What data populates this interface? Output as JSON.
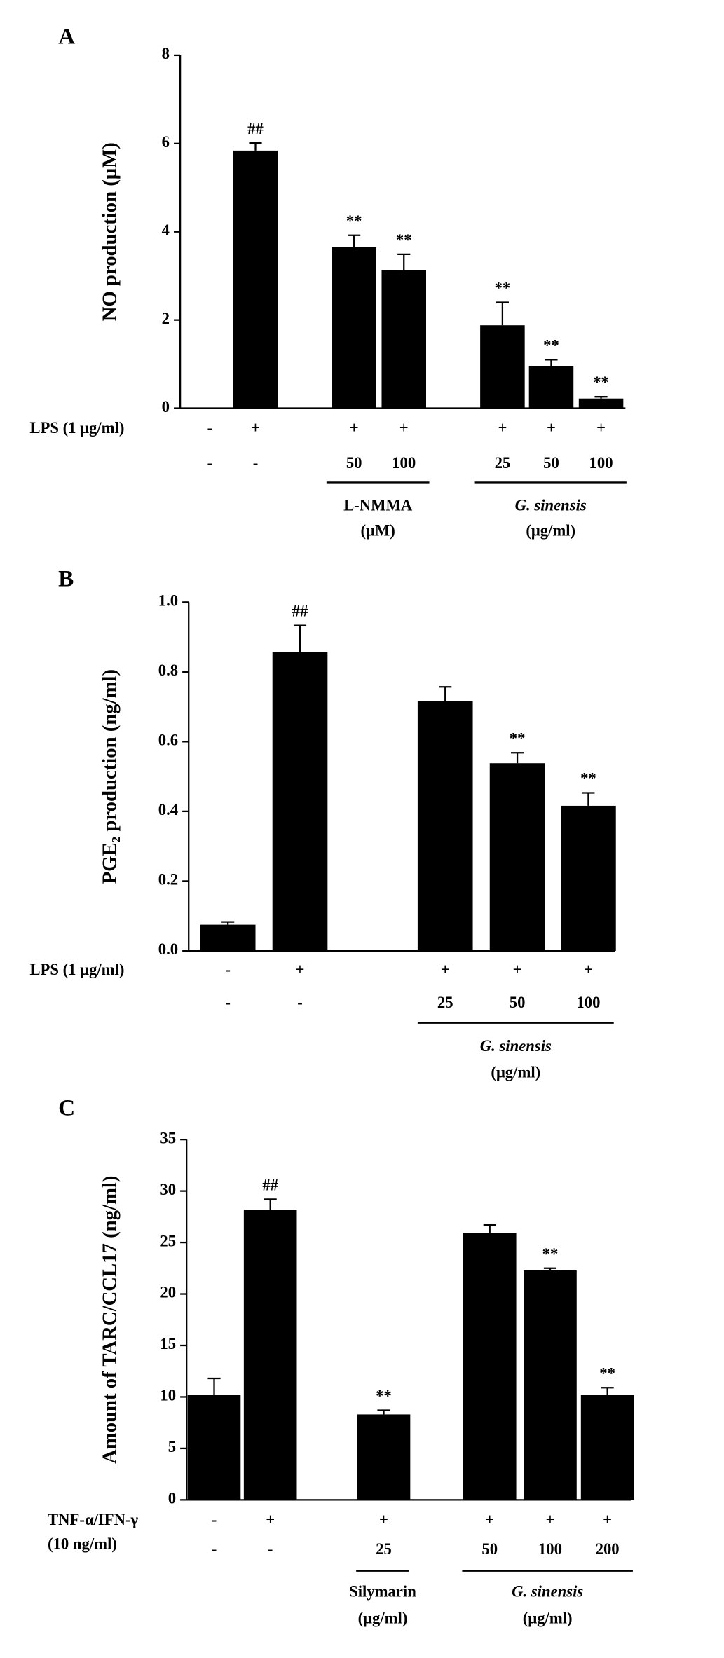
{
  "chart_data": [
    {
      "type": "bar",
      "panel": "A",
      "ylabel": "NO production (μM)",
      "ylim": [
        0,
        8
      ],
      "yticks": [
        0,
        2,
        4,
        6,
        8
      ],
      "color": "#000000",
      "values": [
        0,
        5.84,
        3.65,
        3.13,
        1.88,
        0.96,
        0.22
      ],
      "errors": [
        null,
        0.17,
        0.27,
        0.36,
        0.52,
        0.14,
        0.04
      ],
      "annotations": [
        null,
        "##",
        "**",
        "**",
        "**",
        "**",
        "**"
      ],
      "treatments": [
        {
          "label": "LPS (1 μg/ml)",
          "values": [
            "-",
            "+",
            "+",
            "+",
            "+",
            "+",
            "+"
          ]
        },
        {
          "values": [
            "-",
            "-",
            "50",
            "100",
            "25",
            "50",
            "100"
          ]
        }
      ],
      "groups": [
        {
          "name": "L-NMMA",
          "unit": "(μM)",
          "bars": [
            2,
            3
          ],
          "style": "normal"
        },
        {
          "name": "G. sinensis",
          "unit": "(μg/ml)",
          "bars": [
            4,
            6
          ],
          "style": "italic"
        }
      ]
    },
    {
      "type": "bar",
      "panel": "B",
      "ylabel": "PGE₂ production (ng/ml)",
      "ylim": [
        0,
        1
      ],
      "yticks": [
        {
          "value": 0,
          "label": "0.0"
        },
        0.2,
        0.4,
        0.6,
        0.8,
        {
          "value": 1,
          "label": "1.0"
        }
      ],
      "color": "#000000",
      "values": [
        0.075,
        0.857,
        0.717,
        0.538,
        0.416
      ],
      "errors": [
        0.008,
        0.076,
        0.04,
        0.03,
        0.037
      ],
      "annotations": [
        null,
        "##",
        null,
        "**",
        "**"
      ],
      "treatments": [
        {
          "label": "LPS (1 μg/ml)",
          "values": [
            "-",
            "+",
            "+",
            "+",
            "+"
          ]
        },
        {
          "values": [
            "-",
            "-",
            "25",
            "50",
            "100"
          ]
        }
      ],
      "groups": [
        {
          "name": "G. sinensis",
          "unit": "(μg/ml)",
          "bars": [
            2,
            4
          ],
          "style": "italic"
        }
      ]
    },
    {
      "type": "bar",
      "panel": "C",
      "ylabel": "Amount of TARC/CCL17 (ng/ml)",
      "ylim": [
        0,
        35
      ],
      "yticks": [
        0,
        5,
        10,
        15,
        20,
        25,
        30,
        35
      ],
      "color": "#000000",
      "values": [
        10.2,
        28.2,
        8.3,
        25.9,
        22.3,
        10.2
      ],
      "errors": [
        1.6,
        1.0,
        0.4,
        0.8,
        0.2,
        0.7
      ],
      "annotations": [
        null,
        "##",
        "**",
        null,
        "**",
        "**"
      ],
      "treatments": [
        {
          "label": "TNF-α/IFN-γ",
          "values": [
            "-",
            "+",
            "+",
            "+",
            "+",
            "+"
          ]
        },
        {
          "label": "(10 ng/ml)",
          "values": [
            "-",
            "-",
            "25",
            "50",
            "100",
            "200"
          ]
        }
      ],
      "groups": [
        {
          "name": "Silymarin",
          "unit": "(μg/ml)",
          "bars": [
            2,
            2
          ],
          "style": "normal"
        },
        {
          "name": "G. sinensis",
          "unit": "(μg/ml)",
          "bars": [
            3,
            5
          ],
          "style": "italic"
        }
      ]
    }
  ]
}
